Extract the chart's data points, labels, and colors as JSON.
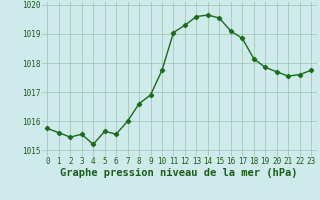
{
  "x": [
    0,
    1,
    2,
    3,
    4,
    5,
    6,
    7,
    8,
    9,
    10,
    11,
    12,
    13,
    14,
    15,
    16,
    17,
    18,
    19,
    20,
    21,
    22,
    23
  ],
  "y": [
    1015.75,
    1015.6,
    1015.45,
    1015.55,
    1015.2,
    1015.65,
    1015.55,
    1016.0,
    1016.6,
    1016.9,
    1017.75,
    1019.05,
    1019.3,
    1019.6,
    1019.65,
    1019.55,
    1019.1,
    1018.85,
    1018.15,
    1017.85,
    1017.7,
    1017.55,
    1017.6,
    1017.75
  ],
  "line_color": "#1a6b1a",
  "marker": "D",
  "marker_size": 2.2,
  "bg_color": "#ceeaea",
  "grid_color": "#9dbfb0",
  "xlabel": "Graphe pression niveau de la mer (hPa)",
  "xlabel_color": "#1a5c1a",
  "xlabel_fontsize": 7.5,
  "tick_color": "#1a5c1a",
  "tick_fontsize": 5.5,
  "ylim": [
    1014.8,
    1020.1
  ],
  "xlim": [
    -0.5,
    23.5
  ],
  "yticks": [
    1015,
    1016,
    1017,
    1018,
    1019,
    1020
  ],
  "xticks": [
    0,
    1,
    2,
    3,
    4,
    5,
    6,
    7,
    8,
    9,
    10,
    11,
    12,
    13,
    14,
    15,
    16,
    17,
    18,
    19,
    20,
    21,
    22,
    23
  ]
}
